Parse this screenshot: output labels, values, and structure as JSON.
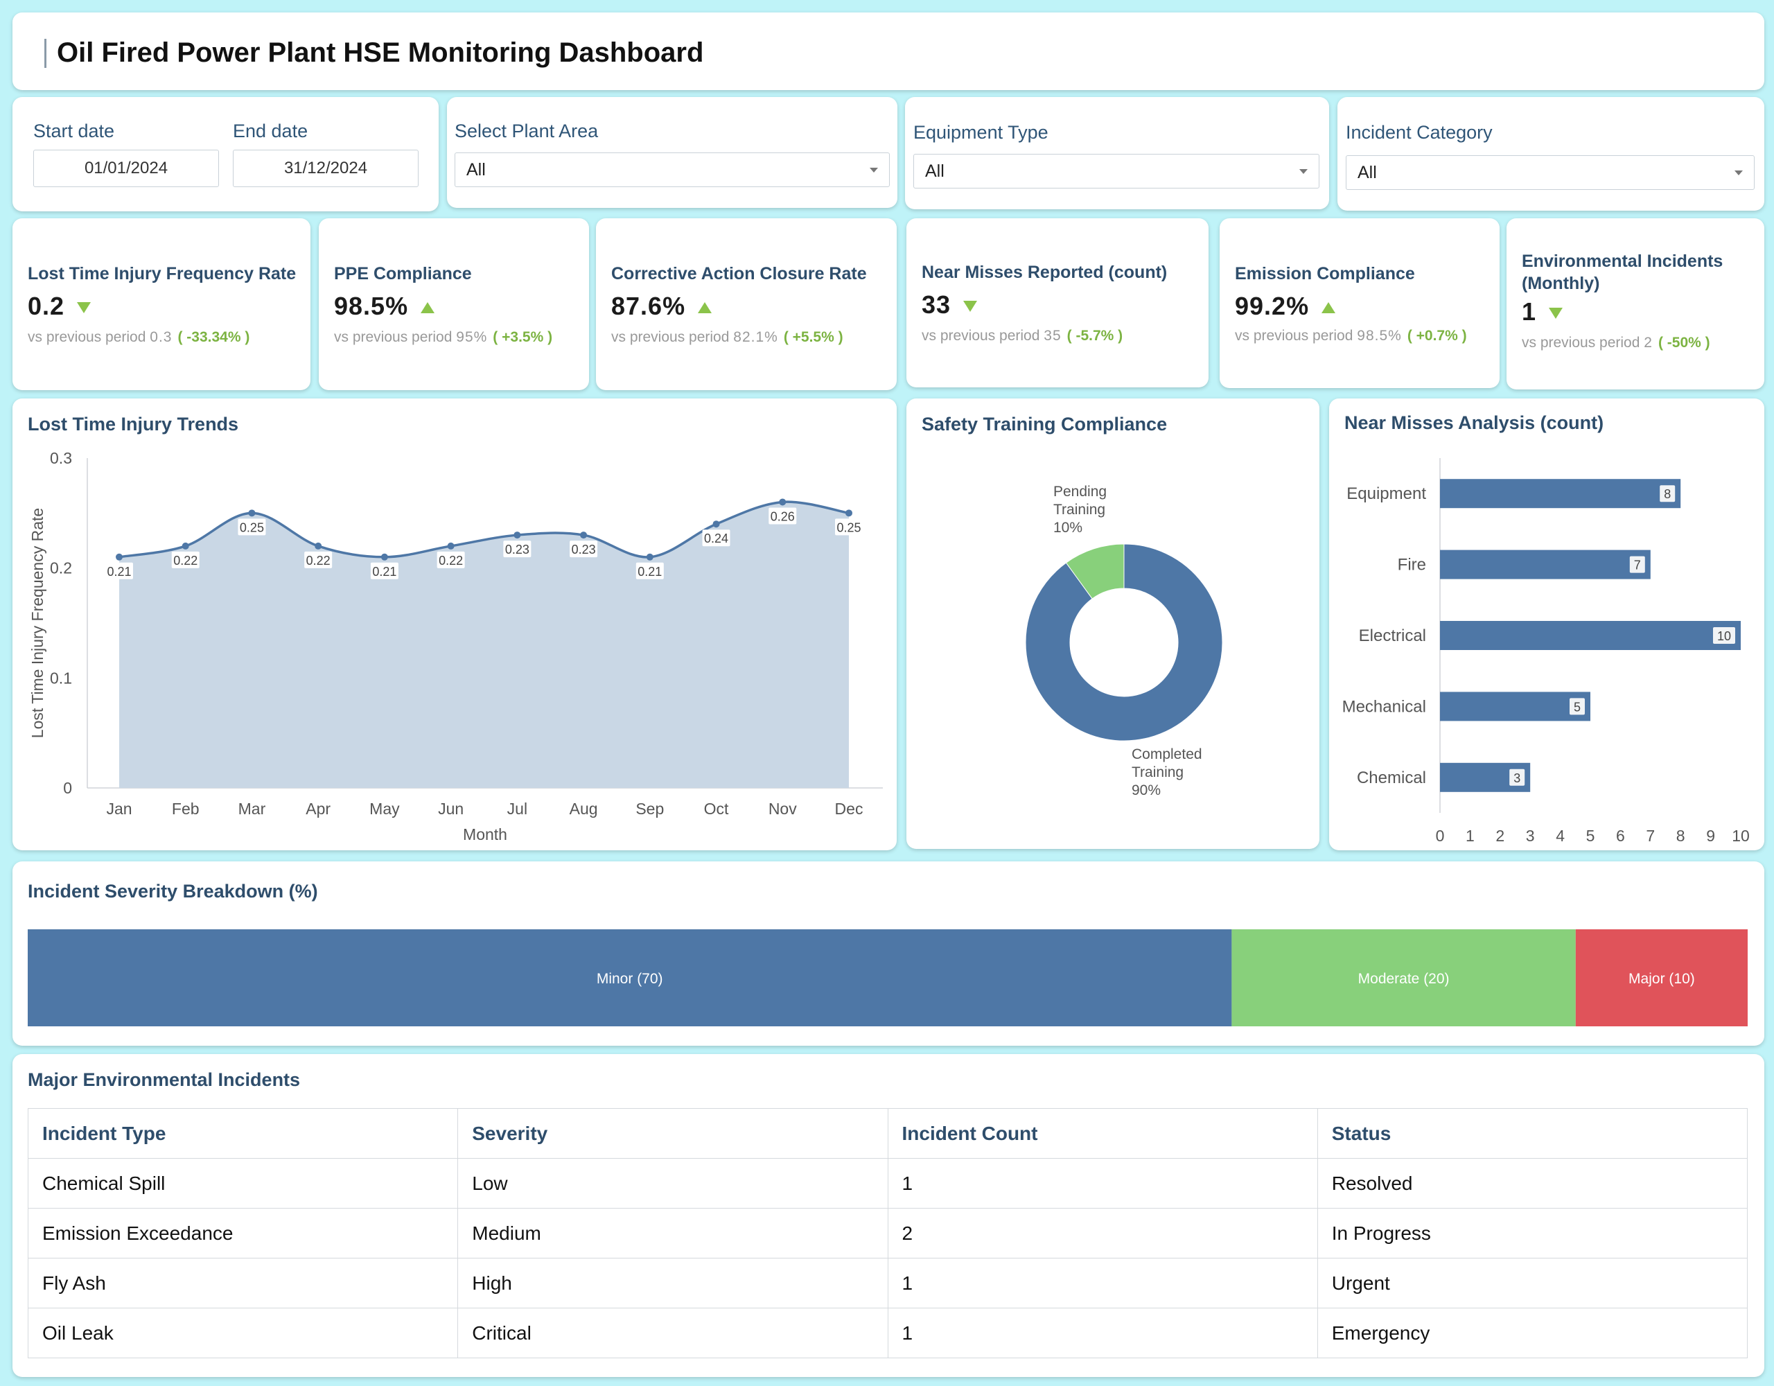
{
  "header": {
    "title": "Oil Fired Power Plant HSE Monitoring Dashboard"
  },
  "filters": {
    "start_date_label": "Start date",
    "start_date_value": "01/01/2024",
    "end_date_label": "End date",
    "end_date_value": "31/12/2024",
    "plant_area_label": "Select Plant Area",
    "plant_area_value": "All",
    "equipment_label": "Equipment Type",
    "equipment_value": "All",
    "incident_cat_label": "Incident Category",
    "incident_cat_value": "All"
  },
  "kpis": [
    {
      "title": "Lost Time Injury Frequency Rate",
      "value": "0.2",
      "trend": "down",
      "prev_label": "vs previous period",
      "prev_value": "0.3",
      "change": "( -33.34% )"
    },
    {
      "title": "PPE Compliance",
      "value": "98.5%",
      "trend": "up",
      "prev_label": "vs previous period",
      "prev_value": "95%",
      "change": "( +3.5% )"
    },
    {
      "title": "Corrective Action Closure Rate",
      "value": "87.6%",
      "trend": "up",
      "prev_label": "vs previous period",
      "prev_value": "82.1%",
      "change": "( +5.5% )"
    },
    {
      "title": "Near Misses Reported (count)",
      "value": "33",
      "trend": "down",
      "prev_label": "vs previous period",
      "prev_value": "35",
      "change": "( -5.7% )"
    },
    {
      "title": "Emission Compliance",
      "value": "99.2%",
      "trend": "up",
      "prev_label": "vs previous period",
      "prev_value": "98.5%",
      "change": "( +0.7% )"
    },
    {
      "title": "Environmental Incidents (Monthly)",
      "value": "1",
      "trend": "down",
      "prev_label": "vs previous period",
      "prev_value": "2",
      "change": "( -50% )"
    }
  ],
  "panels": {
    "lti_title": "Lost Time Injury Trends",
    "training_title": "Safety Training Compliance",
    "near_miss_title": "Near Misses Analysis (count)",
    "severity_title": "Incident Severity Breakdown (%)",
    "table_title": "Major Environmental Incidents"
  },
  "chart_data": [
    {
      "type": "area",
      "title": "Lost Time Injury Trends",
      "xlabel": "Month",
      "ylabel": "Lost Time Injury Frequency Rate",
      "categories": [
        "Jan",
        "Feb",
        "Mar",
        "Apr",
        "May",
        "Jun",
        "Jul",
        "Aug",
        "Sep",
        "Oct",
        "Nov",
        "Dec"
      ],
      "values": [
        0.21,
        0.22,
        0.25,
        0.22,
        0.21,
        0.22,
        0.23,
        0.23,
        0.21,
        0.24,
        0.26,
        0.25
      ],
      "ylim": [
        0,
        0.3
      ],
      "yticks": [
        "0",
        "0.1",
        "0.2",
        "0.3"
      ],
      "color": "#4e77a6",
      "fill": "#c9d7e5"
    },
    {
      "type": "pie",
      "title": "Safety Training Compliance",
      "slices": [
        {
          "label": "Completed Training",
          "label_lines": [
            "Completed",
            "Training",
            "90%"
          ],
          "value": 90,
          "color": "#4e77a6"
        },
        {
          "label": "Pending Training",
          "label_lines": [
            "Pending",
            "Training",
            "10%"
          ],
          "value": 10,
          "color": "#88d07b"
        }
      ]
    },
    {
      "type": "bar",
      "orientation": "horizontal",
      "title": "Near Misses Analysis (count)",
      "categories": [
        "Equipment",
        "Fire",
        "Electrical",
        "Mechanical",
        "Chemical"
      ],
      "values": [
        8,
        7,
        10,
        5,
        3
      ],
      "xlim": [
        0,
        10
      ],
      "xticks": [
        "0",
        "1",
        "2",
        "3",
        "4",
        "5",
        "6",
        "7",
        "8",
        "9",
        "10"
      ],
      "color": "#4e77a6"
    },
    {
      "type": "bar",
      "orientation": "stacked-100",
      "title": "Incident Severity Breakdown (%)",
      "segments": [
        {
          "label": "Minor (70)",
          "value": 70,
          "color": "#4e77a6"
        },
        {
          "label": "Moderate (20)",
          "value": 20,
          "color": "#88d07b"
        },
        {
          "label": "Major (10)",
          "value": 10,
          "color": "#e0535a"
        }
      ]
    }
  ],
  "table": {
    "headers": [
      "Incident Type",
      "Severity",
      "Incident Count",
      "Status"
    ],
    "rows": [
      [
        "Chemical Spill",
        "Low",
        "1",
        "Resolved"
      ],
      [
        "Emission Exceedance",
        "Medium",
        "2",
        "In Progress"
      ],
      [
        "Fly Ash",
        "High",
        "1",
        "Urgent"
      ],
      [
        "Oil Leak",
        "Critical",
        "1",
        "Emergency"
      ]
    ]
  }
}
